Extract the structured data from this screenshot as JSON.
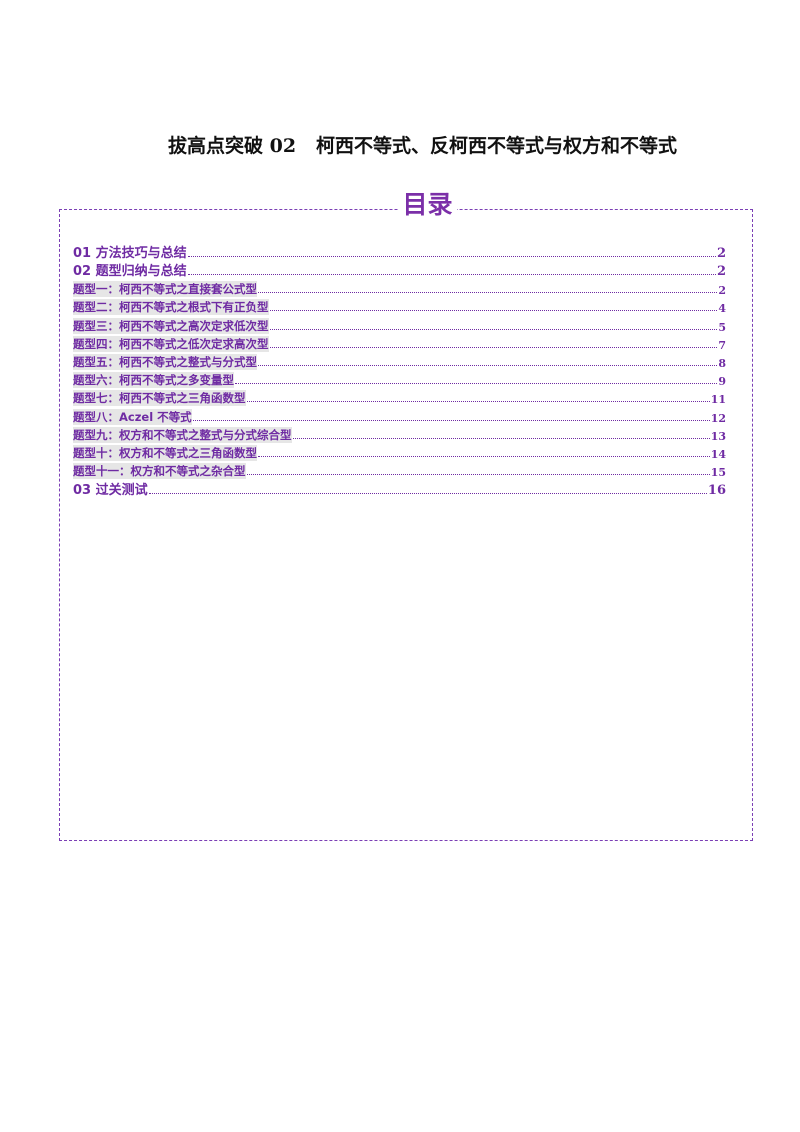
{
  "document": {
    "title_prefix": "拔高点突破",
    "title_number": "02",
    "title_topic": "柯西不等式、反柯西不等式与权方和不等式"
  },
  "toc": {
    "heading": "目录",
    "entries": [
      {
        "label": "01 方法技巧与总结",
        "page": "2",
        "level": 1
      },
      {
        "label": "02 题型归纳与总结",
        "page": "2",
        "level": 1
      },
      {
        "label": "题型一：柯西不等式之直接套公式型",
        "page": "2",
        "level": 2
      },
      {
        "label": "题型二：柯西不等式之根式下有正负型",
        "page": "4",
        "level": 2
      },
      {
        "label": "题型三：柯西不等式之高次定求低次型",
        "page": "5",
        "level": 2
      },
      {
        "label": "题型四：柯西不等式之低次定求高次型",
        "page": "7",
        "level": 2
      },
      {
        "label": "题型五：柯西不等式之整式与分式型",
        "page": "8",
        "level": 2
      },
      {
        "label": "题型六：柯西不等式之多变量型",
        "page": "9",
        "level": 2
      },
      {
        "label": "题型七：柯西不等式之三角函数型",
        "page": "11",
        "level": 2
      },
      {
        "label": "题型八：Aczel 不等式",
        "page": "12",
        "level": 2
      },
      {
        "label": "题型九：权方和不等式之整式与分式综合型",
        "page": "13",
        "level": 2
      },
      {
        "label": "题型十：权方和不等式之三角函数型",
        "page": "14",
        "level": 2
      },
      {
        "label": "题型十一：权方和不等式之杂合型",
        "page": "15",
        "level": 2
      },
      {
        "label": "03 过关测试",
        "page": "16",
        "level": 1
      }
    ]
  },
  "colors": {
    "accent": "#7b2fa8",
    "entry_text": "#6f2ba3",
    "label_highlight": "#e6e6e6"
  }
}
